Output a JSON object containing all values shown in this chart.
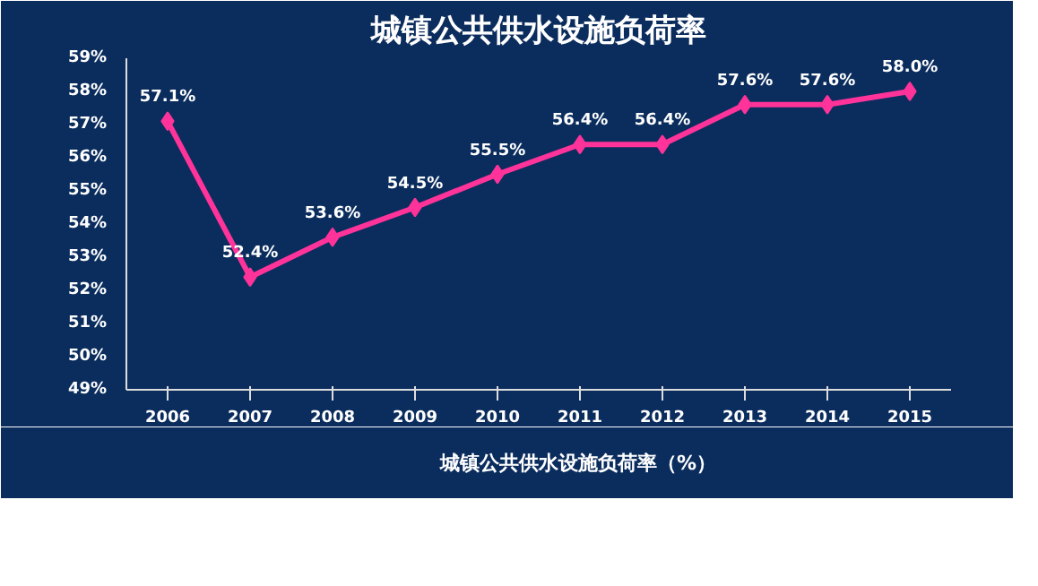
{
  "chart_data": {
    "type": "line",
    "title": "城镇公共供水设施负荷率",
    "categories": [
      "2006",
      "2007",
      "2008",
      "2009",
      "2010",
      "2011",
      "2012",
      "2013",
      "2014",
      "2015"
    ],
    "series": [
      {
        "name": "城镇公共供水设施负荷率（%）",
        "color": "#ff3399",
        "values": [
          57.1,
          52.4,
          53.6,
          54.5,
          55.5,
          56.4,
          56.4,
          57.6,
          57.6,
          58.0
        ],
        "value_labels": [
          "57.1%",
          "52.4%",
          "53.6%",
          "54.5%",
          "55.5%",
          "56.4%",
          "56.4%",
          "57.6%",
          "57.6%",
          "58.0%"
        ]
      }
    ],
    "ylim": [
      49,
      59
    ],
    "yticks": [
      {
        "value": 49,
        "label": "49%"
      },
      {
        "value": 50,
        "label": "50%"
      },
      {
        "value": 51,
        "label": "51%"
      },
      {
        "value": 52,
        "label": "52%"
      },
      {
        "value": 53,
        "label": "53%"
      },
      {
        "value": 54,
        "label": "54%"
      },
      {
        "value": 55,
        "label": "55%"
      },
      {
        "value": 56,
        "label": "56%"
      },
      {
        "value": 57,
        "label": "57%"
      },
      {
        "value": 58,
        "label": "58%"
      },
      {
        "value": 59,
        "label": "59%"
      }
    ],
    "grid": false,
    "legend": "bottom",
    "marker": "diamond",
    "line_style": "solid"
  }
}
